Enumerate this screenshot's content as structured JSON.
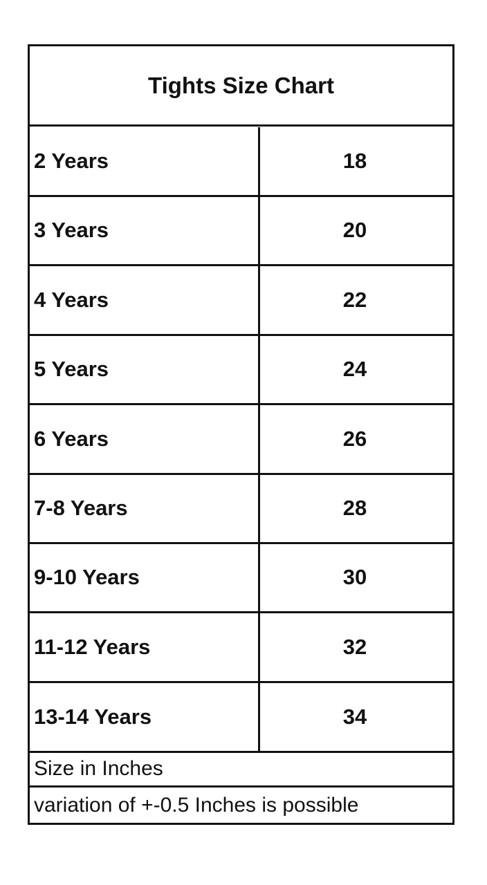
{
  "title": "Tights Size Chart",
  "rows": [
    {
      "age": "2 Years",
      "size": "18"
    },
    {
      "age": "3 Years",
      "size": "20"
    },
    {
      "age": "4 Years",
      "size": "22"
    },
    {
      "age": "5 Years",
      "size": "24"
    },
    {
      "age": "6 Years",
      "size": "26"
    },
    {
      "age": "7-8 Years",
      "size": "28"
    },
    {
      "age": "9-10 Years",
      "size": "30"
    },
    {
      "age": "11-12 Years",
      "size": "32"
    },
    {
      "age": "13-14 Years",
      "size": "34"
    }
  ],
  "notes": {
    "unit": "Size in Inches",
    "variation": "variation of +-0.5 Inches is possible"
  }
}
